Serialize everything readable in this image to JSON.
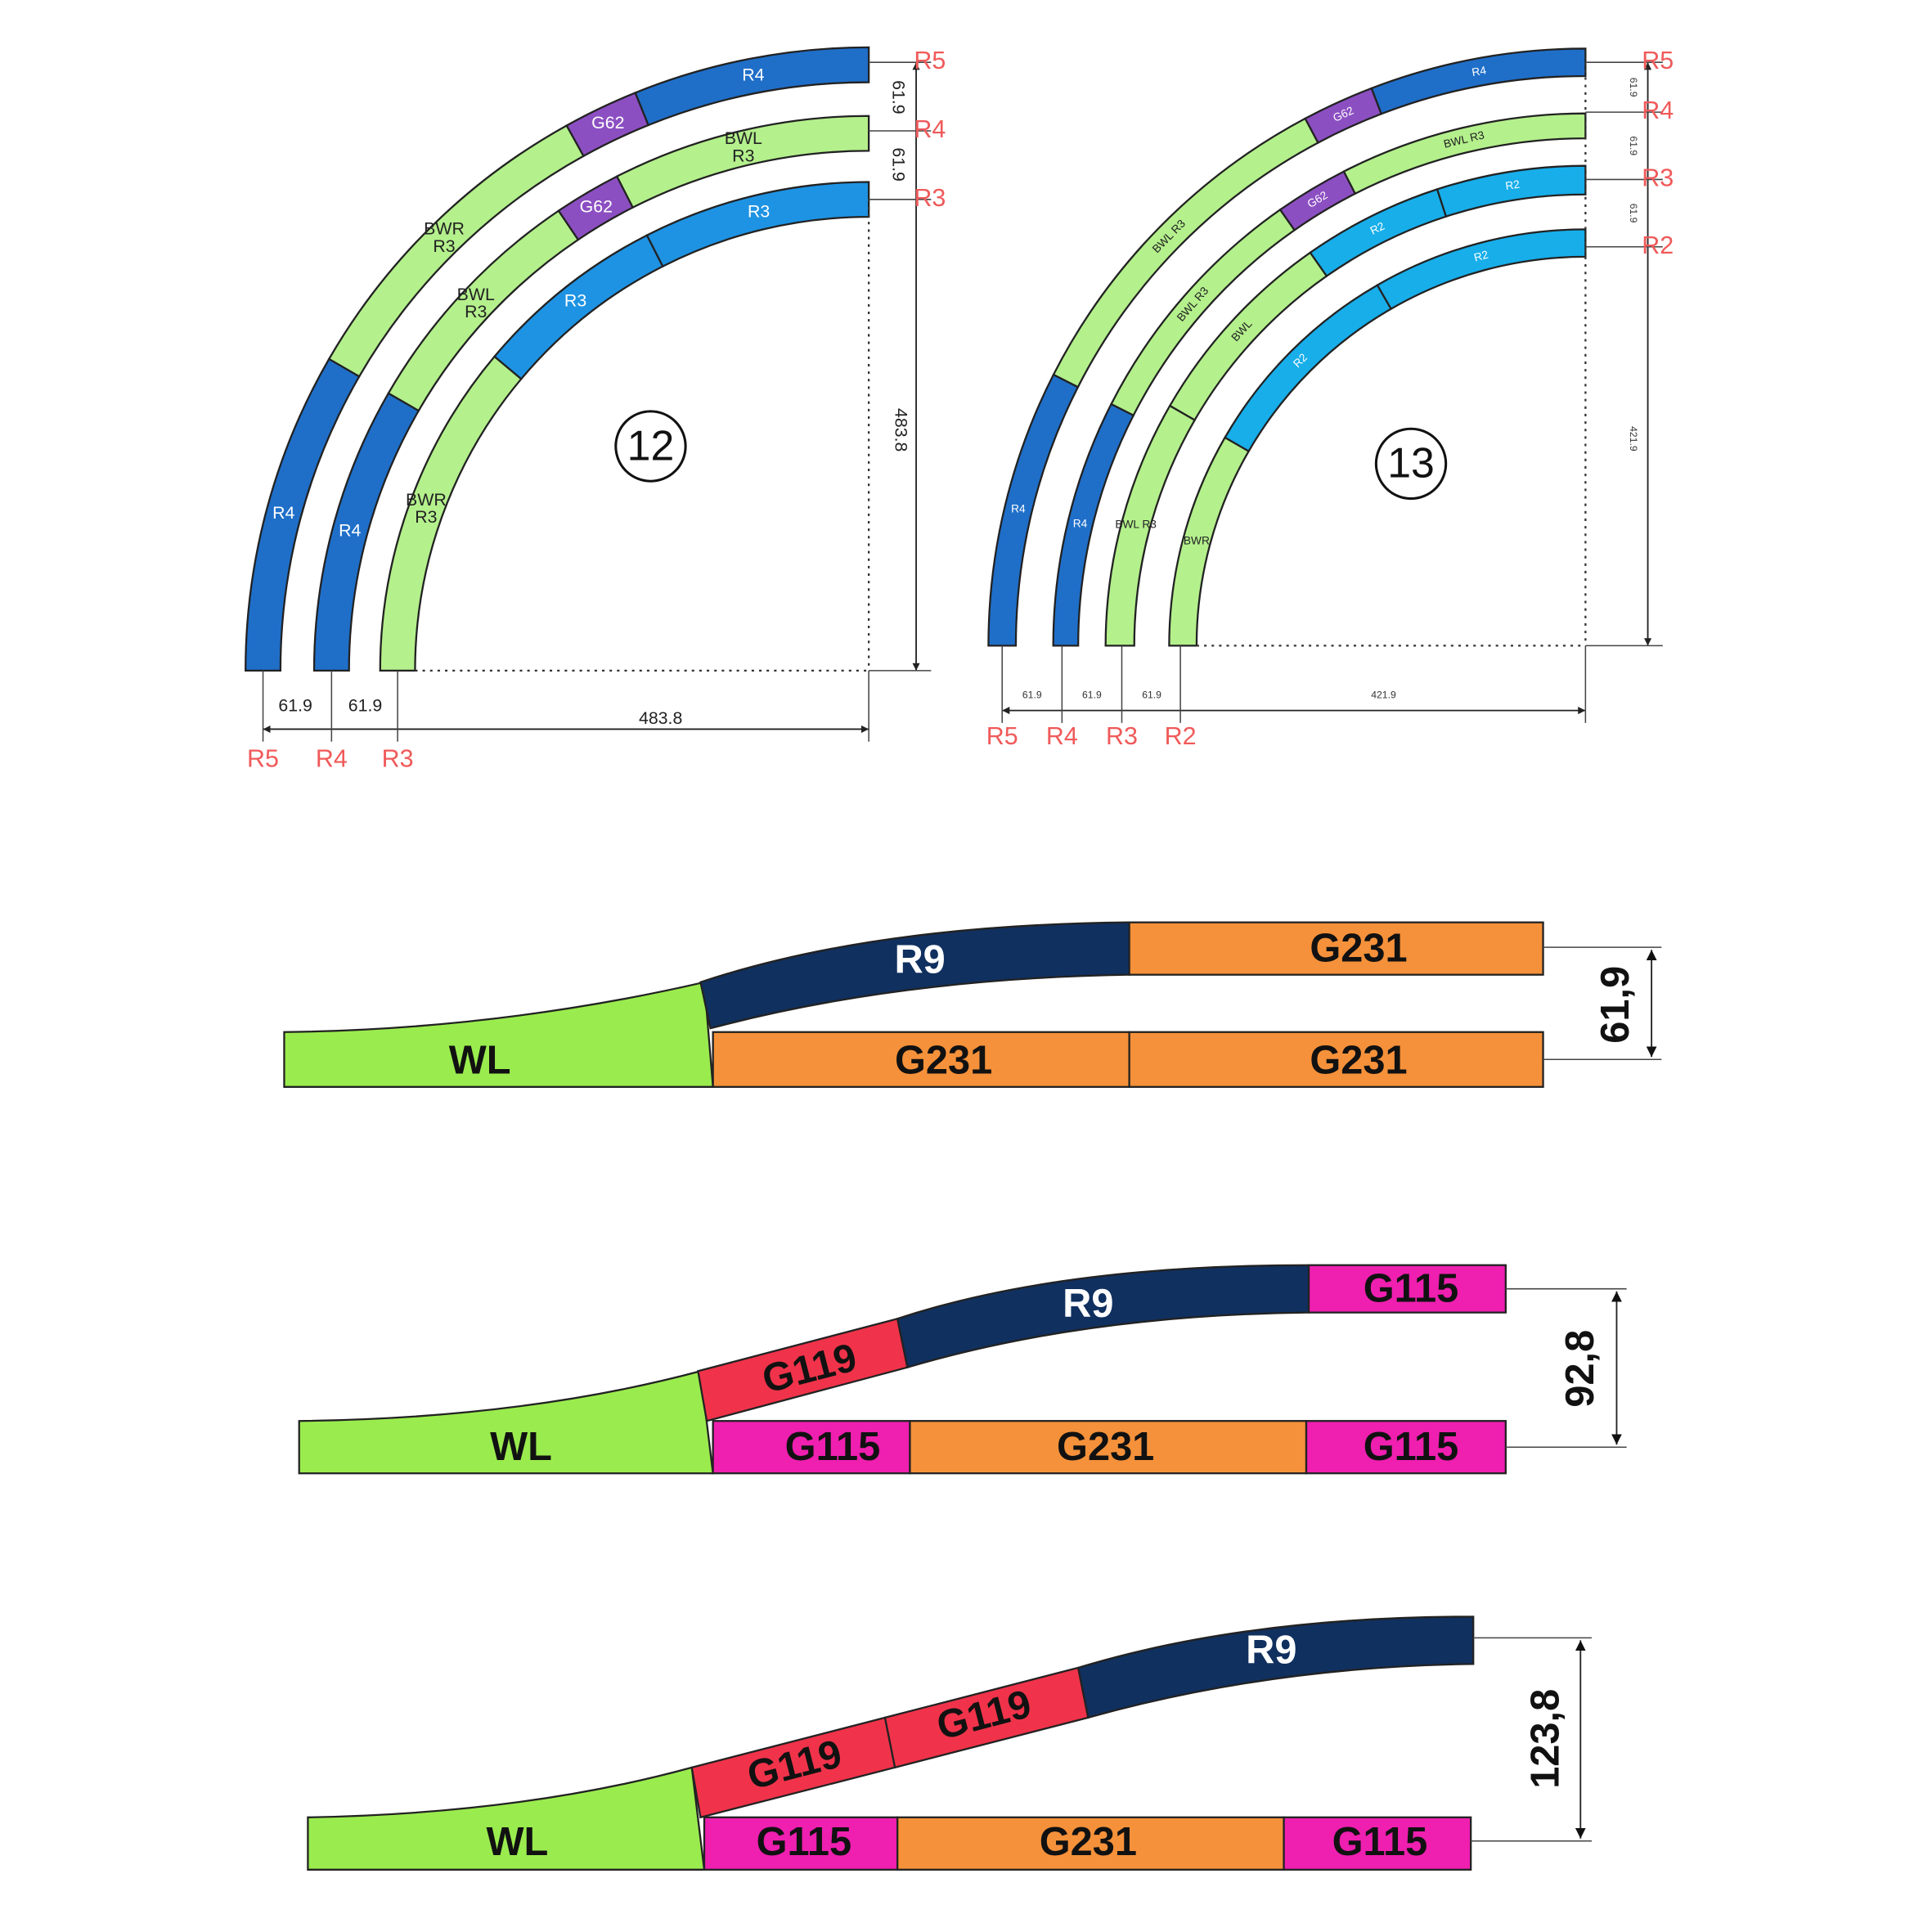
{
  "diagram_12": {
    "number": "12",
    "pieces": [
      [
        "R4"
      ],
      [
        "BWR",
        "R3"
      ],
      [
        "G62"
      ],
      [
        "R4"
      ],
      [
        "R4"
      ],
      [
        "BWL",
        "R3"
      ],
      [
        "G62"
      ],
      [
        "BWL",
        "R3"
      ],
      [
        "BWR",
        "R3"
      ],
      [
        "R3"
      ],
      [
        "R3"
      ]
    ],
    "right_dimensions": [
      "61.9",
      "61.9",
      "483.8"
    ],
    "bottom_dimensions": [
      "61.9",
      "61.9",
      "483.8"
    ],
    "right_radii": [
      "R5",
      "R4",
      "R3"
    ],
    "bottom_radii": [
      "R5",
      "R4",
      "R3"
    ]
  },
  "diagram_13": {
    "number": "13",
    "pieces": [
      [
        "R4"
      ],
      [
        "BWL R3"
      ],
      [
        "G62"
      ],
      [
        "R4"
      ],
      [
        "R4"
      ],
      [
        "BWL R3"
      ],
      [
        "G62"
      ],
      [
        "BWL R3"
      ],
      [
        "BWL R3"
      ],
      [
        "BWL"
      ],
      [
        "R2"
      ],
      [
        "R2"
      ],
      [
        "BWR"
      ],
      [
        "R2"
      ],
      [
        "R2"
      ]
    ],
    "right_dimensions": [
      "61.9",
      "61.9",
      "61.9",
      "421.9"
    ],
    "bottom_dimensions": [
      "61.9",
      "61.9",
      "61.9",
      "421.9"
    ],
    "right_radii": [
      "R5",
      "R4",
      "R3",
      "R2"
    ],
    "bottom_radii": [
      "R5",
      "R4",
      "R3",
      "R2"
    ]
  },
  "layout_1": {
    "pieces": [
      "WL",
      "R9",
      "G231",
      "G231",
      "G231"
    ],
    "dimension": "61,9"
  },
  "layout_2": {
    "pieces": [
      "WL",
      "G119",
      "R9",
      "G115",
      "G115",
      "G231",
      "G115"
    ],
    "dimension": "92,8"
  },
  "layout_3": {
    "pieces": [
      "WL",
      "G119",
      "G119",
      "R9",
      "G115",
      "G231",
      "G115"
    ],
    "dimension": "123,8"
  }
}
